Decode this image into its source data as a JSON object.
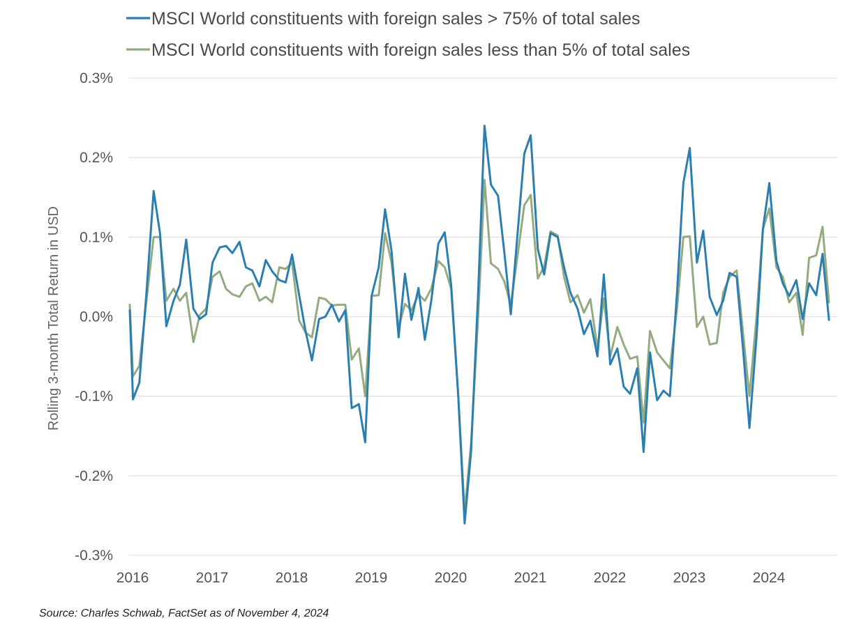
{
  "chart_data": {
    "type": "line",
    "ylabel": "Rolling 3-month Total Return in USD",
    "ylim": [
      -0.3,
      0.3
    ],
    "y_ticks": [
      0.3,
      0.2,
      0.1,
      0.0,
      -0.1,
      -0.2,
      -0.3
    ],
    "y_tick_labels": [
      "0.3%",
      "0.2%",
      "0.1%",
      "0.0%",
      "-0.1%",
      "-0.2%",
      "-0.3%"
    ],
    "x_ticks": [
      "2016",
      "2017",
      "2018",
      "2019",
      "2020",
      "2021",
      "2022",
      "2023",
      "2024"
    ],
    "xlim": [
      2016.0,
      2025.0
    ],
    "grid": "horizontal",
    "legend_position": "top-left",
    "series": [
      {
        "name": "MSCI World constituents with foreign sales > 75% of total sales",
        "color": "#2a7fb0",
        "points": [
          [
            2016.0,
            0.008
          ],
          [
            2016.04,
            -0.104
          ],
          [
            2016.12,
            -0.083
          ],
          [
            2016.21,
            0.03
          ],
          [
            2016.3,
            0.158
          ],
          [
            2016.38,
            0.105
          ],
          [
            2016.46,
            -0.012
          ],
          [
            2016.55,
            0.02
          ],
          [
            2016.63,
            0.04
          ],
          [
            2016.71,
            0.097
          ],
          [
            2016.8,
            0.01
          ],
          [
            2016.88,
            -0.003
          ],
          [
            2016.96,
            0.003
          ],
          [
            2017.04,
            0.068
          ],
          [
            2017.13,
            0.087
          ],
          [
            2017.21,
            0.089
          ],
          [
            2017.29,
            0.08
          ],
          [
            2017.38,
            0.094
          ],
          [
            2017.46,
            0.062
          ],
          [
            2017.54,
            0.058
          ],
          [
            2017.63,
            0.038
          ],
          [
            2017.71,
            0.071
          ],
          [
            2017.79,
            0.057
          ],
          [
            2017.88,
            0.046
          ],
          [
            2017.96,
            0.043
          ],
          [
            2018.04,
            0.078
          ],
          [
            2018.13,
            0.027
          ],
          [
            2018.21,
            -0.018
          ],
          [
            2018.29,
            -0.055
          ],
          [
            2018.38,
            -0.003
          ],
          [
            2018.46,
            0.0
          ],
          [
            2018.54,
            0.015
          ],
          [
            2018.63,
            -0.006
          ],
          [
            2018.71,
            0.008
          ],
          [
            2018.79,
            -0.115
          ],
          [
            2018.88,
            -0.11
          ],
          [
            2018.96,
            -0.158
          ],
          [
            2019.04,
            0.026
          ],
          [
            2019.13,
            0.062
          ],
          [
            2019.21,
            0.135
          ],
          [
            2019.29,
            0.083
          ],
          [
            2019.38,
            -0.026
          ],
          [
            2019.46,
            0.054
          ],
          [
            2019.54,
            -0.004
          ],
          [
            2019.63,
            0.036
          ],
          [
            2019.71,
            -0.029
          ],
          [
            2019.79,
            0.02
          ],
          [
            2019.88,
            0.092
          ],
          [
            2019.96,
            0.106
          ],
          [
            2020.04,
            0.04
          ],
          [
            2020.13,
            -0.1
          ],
          [
            2020.21,
            -0.26
          ],
          [
            2020.29,
            -0.17
          ],
          [
            2020.38,
            0.03
          ],
          [
            2020.46,
            0.24
          ],
          [
            2020.54,
            0.166
          ],
          [
            2020.63,
            0.152
          ],
          [
            2020.71,
            0.08
          ],
          [
            2020.79,
            0.003
          ],
          [
            2020.88,
            0.11
          ],
          [
            2020.96,
            0.205
          ],
          [
            2021.04,
            0.228
          ],
          [
            2021.13,
            0.085
          ],
          [
            2021.21,
            0.053
          ],
          [
            2021.29,
            0.105
          ],
          [
            2021.38,
            0.1
          ],
          [
            2021.46,
            0.062
          ],
          [
            2021.54,
            0.03
          ],
          [
            2021.63,
            0.01
          ],
          [
            2021.71,
            -0.022
          ],
          [
            2021.79,
            -0.005
          ],
          [
            2021.88,
            -0.05
          ],
          [
            2021.96,
            0.053
          ],
          [
            2022.04,
            -0.06
          ],
          [
            2022.13,
            -0.04
          ],
          [
            2022.21,
            -0.088
          ],
          [
            2022.29,
            -0.097
          ],
          [
            2022.38,
            -0.065
          ],
          [
            2022.46,
            -0.17
          ],
          [
            2022.54,
            -0.045
          ],
          [
            2022.63,
            -0.105
          ],
          [
            2022.71,
            -0.093
          ],
          [
            2022.79,
            -0.1
          ],
          [
            2022.88,
            0.03
          ],
          [
            2022.96,
            0.168
          ],
          [
            2023.04,
            0.212
          ],
          [
            2023.13,
            0.068
          ],
          [
            2023.21,
            0.108
          ],
          [
            2023.29,
            0.025
          ],
          [
            2023.38,
            0.002
          ],
          [
            2023.46,
            0.02
          ],
          [
            2023.54,
            0.055
          ],
          [
            2023.63,
            0.05
          ],
          [
            2023.71,
            -0.04
          ],
          [
            2023.79,
            -0.14
          ],
          [
            2023.88,
            -0.025
          ],
          [
            2023.96,
            0.11
          ],
          [
            2024.04,
            0.168
          ],
          [
            2024.13,
            0.07
          ],
          [
            2024.21,
            0.042
          ],
          [
            2024.29,
            0.026
          ],
          [
            2024.38,
            0.046
          ],
          [
            2024.46,
            -0.003
          ],
          [
            2024.54,
            0.042
          ],
          [
            2024.63,
            0.027
          ],
          [
            2024.71,
            0.079
          ],
          [
            2024.79,
            -0.004
          ]
        ]
      },
      {
        "name": "MSCI World constituents with foreign sales less than 5% of total sales",
        "color": "#93ab80",
        "points": [
          [
            2016.0,
            0.015
          ],
          [
            2016.04,
            -0.075
          ],
          [
            2016.12,
            -0.062
          ],
          [
            2016.21,
            0.02
          ],
          [
            2016.3,
            0.1
          ],
          [
            2016.38,
            0.1
          ],
          [
            2016.46,
            0.02
          ],
          [
            2016.55,
            0.035
          ],
          [
            2016.63,
            0.02
          ],
          [
            2016.71,
            0.03
          ],
          [
            2016.8,
            -0.032
          ],
          [
            2016.88,
            0.002
          ],
          [
            2016.96,
            0.01
          ],
          [
            2017.04,
            0.05
          ],
          [
            2017.13,
            0.057
          ],
          [
            2017.21,
            0.035
          ],
          [
            2017.29,
            0.028
          ],
          [
            2017.38,
            0.025
          ],
          [
            2017.46,
            0.038
          ],
          [
            2017.54,
            0.042
          ],
          [
            2017.63,
            0.02
          ],
          [
            2017.71,
            0.025
          ],
          [
            2017.79,
            0.018
          ],
          [
            2017.88,
            0.062
          ],
          [
            2017.96,
            0.06
          ],
          [
            2018.04,
            0.068
          ],
          [
            2018.13,
            -0.005
          ],
          [
            2018.21,
            -0.02
          ],
          [
            2018.29,
            -0.026
          ],
          [
            2018.38,
            0.024
          ],
          [
            2018.46,
            0.022
          ],
          [
            2018.54,
            0.014
          ],
          [
            2018.63,
            0.015
          ],
          [
            2018.71,
            0.015
          ],
          [
            2018.79,
            -0.054
          ],
          [
            2018.88,
            -0.04
          ],
          [
            2018.96,
            -0.1
          ],
          [
            2019.04,
            0.026
          ],
          [
            2019.13,
            0.027
          ],
          [
            2019.21,
            0.105
          ],
          [
            2019.29,
            0.068
          ],
          [
            2019.38,
            -0.014
          ],
          [
            2019.46,
            0.016
          ],
          [
            2019.54,
            0.008
          ],
          [
            2019.63,
            0.028
          ],
          [
            2019.71,
            0.02
          ],
          [
            2019.79,
            0.035
          ],
          [
            2019.88,
            0.07
          ],
          [
            2019.96,
            0.062
          ],
          [
            2020.04,
            0.035
          ],
          [
            2020.13,
            -0.1
          ],
          [
            2020.21,
            -0.245
          ],
          [
            2020.29,
            -0.16
          ],
          [
            2020.38,
            0.0
          ],
          [
            2020.46,
            0.172
          ],
          [
            2020.54,
            0.067
          ],
          [
            2020.63,
            0.06
          ],
          [
            2020.71,
            0.044
          ],
          [
            2020.79,
            0.015
          ],
          [
            2020.88,
            0.08
          ],
          [
            2020.96,
            0.14
          ],
          [
            2021.04,
            0.153
          ],
          [
            2021.13,
            0.048
          ],
          [
            2021.21,
            0.063
          ],
          [
            2021.29,
            0.107
          ],
          [
            2021.38,
            0.102
          ],
          [
            2021.46,
            0.05
          ],
          [
            2021.54,
            0.018
          ],
          [
            2021.63,
            0.027
          ],
          [
            2021.71,
            0.005
          ],
          [
            2021.79,
            0.022
          ],
          [
            2021.88,
            -0.04
          ],
          [
            2021.96,
            0.023
          ],
          [
            2022.04,
            -0.05
          ],
          [
            2022.13,
            -0.013
          ],
          [
            2022.21,
            -0.035
          ],
          [
            2022.29,
            -0.053
          ],
          [
            2022.38,
            -0.05
          ],
          [
            2022.46,
            -0.133
          ],
          [
            2022.54,
            -0.018
          ],
          [
            2022.63,
            -0.045
          ],
          [
            2022.71,
            -0.055
          ],
          [
            2022.79,
            -0.065
          ],
          [
            2022.88,
            0.01
          ],
          [
            2022.96,
            0.1
          ],
          [
            2023.04,
            0.101
          ],
          [
            2023.13,
            -0.013
          ],
          [
            2023.21,
            0.0
          ],
          [
            2023.29,
            -0.035
          ],
          [
            2023.38,
            -0.033
          ],
          [
            2023.46,
            0.03
          ],
          [
            2023.54,
            0.05
          ],
          [
            2023.63,
            0.058
          ],
          [
            2023.71,
            -0.02
          ],
          [
            2023.79,
            -0.1
          ],
          [
            2023.88,
            0.0
          ],
          [
            2023.96,
            0.11
          ],
          [
            2024.04,
            0.136
          ],
          [
            2024.13,
            0.062
          ],
          [
            2024.21,
            0.05
          ],
          [
            2024.29,
            0.018
          ],
          [
            2024.38,
            0.03
          ],
          [
            2024.46,
            -0.023
          ],
          [
            2024.54,
            0.074
          ],
          [
            2024.63,
            0.077
          ],
          [
            2024.71,
            0.113
          ],
          [
            2024.79,
            0.018
          ]
        ]
      }
    ]
  },
  "footer": {
    "source": "Source: Charles Schwab, FactSet as of November 4, 2024"
  }
}
